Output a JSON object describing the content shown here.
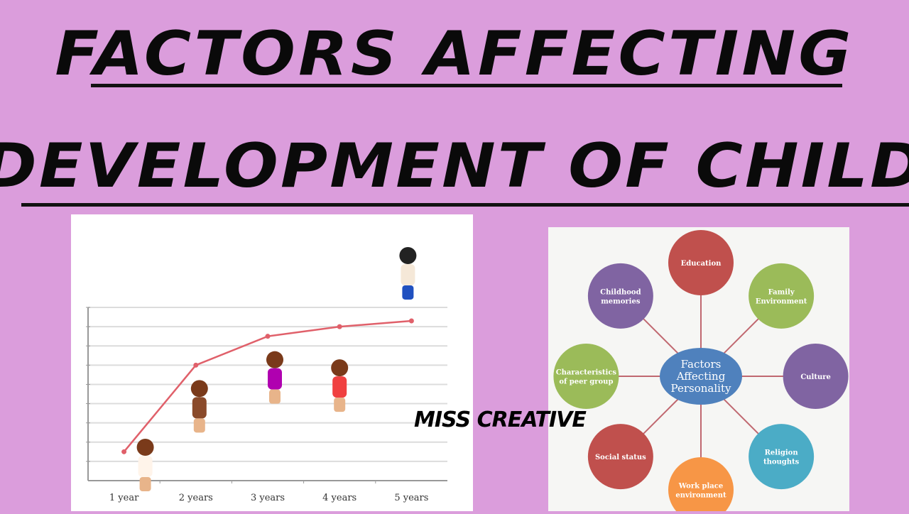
{
  "title": {
    "line1": "FACTORS AFFECTING",
    "line2": "DEVELOPMENT OF CHILD"
  },
  "watermark": "MISS CREATIVE",
  "chart_data": {
    "type": "line",
    "categories": [
      "1 year",
      "2 years",
      "3 years",
      "4 years",
      "5 years"
    ],
    "values": [
      1.5,
      6,
      7.5,
      8,
      8.3
    ],
    "ylim": [
      0,
      9
    ],
    "grid": true,
    "line_color": "#e0606a"
  },
  "diagram": {
    "center": {
      "label": [
        "Factors",
        "Affecting",
        "Personality"
      ],
      "color": "#4f81bd"
    },
    "nodes": [
      {
        "label": [
          "Education"
        ],
        "color": "#c0504d"
      },
      {
        "label": [
          "Family",
          "Environment"
        ],
        "color": "#9bbb59"
      },
      {
        "label": [
          "Culture"
        ],
        "color": "#8064a2"
      },
      {
        "label": [
          "Religion",
          "thoughts"
        ],
        "color": "#4bacc6"
      },
      {
        "label": [
          "Work place",
          "environment"
        ],
        "color": "#f79646"
      },
      {
        "label": [
          "Social status"
        ],
        "color": "#c0504d"
      },
      {
        "label": [
          "Characteristics",
          "of peer group"
        ],
        "color": "#9bbb59"
      },
      {
        "label": [
          "Childhood",
          "memories"
        ],
        "color": "#8064a2"
      }
    ]
  }
}
